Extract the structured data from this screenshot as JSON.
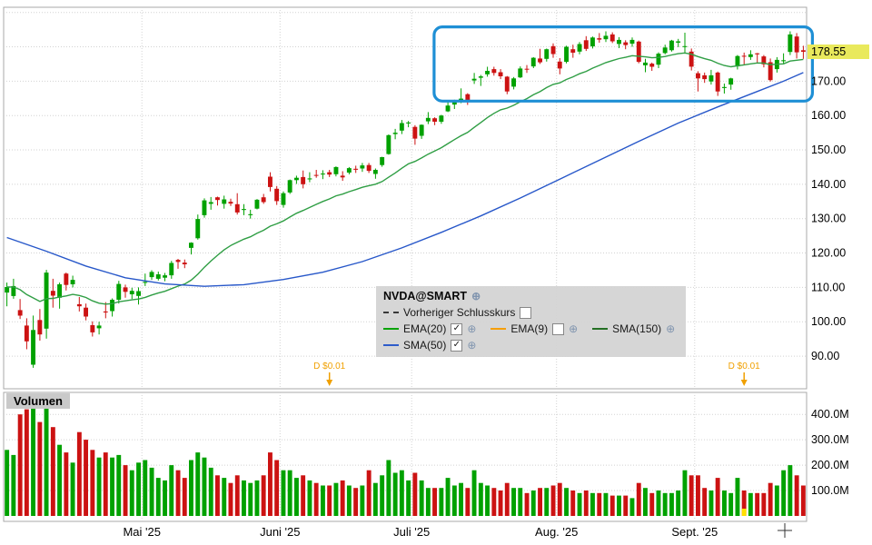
{
  "icons": {
    "globe": "⊕",
    "check": "✓"
  },
  "volume_panel": {
    "label": "Volumen"
  },
  "legend": {
    "title": "NVDA@SMART",
    "rows": [
      {
        "items": [
          {
            "id": "prev-close",
            "swatch": "dashed",
            "color": "#333333",
            "label": "Vorheriger Schlusskurs",
            "checkbox": "empty",
            "globe": false
          }
        ]
      },
      {
        "items": [
          {
            "id": "ema20",
            "swatch": "solid",
            "color": "#00a100",
            "label": "EMA(20)",
            "checkbox": "checked",
            "globe": true
          },
          {
            "id": "ema9",
            "swatch": "solid",
            "color": "#f59b00",
            "label": "EMA(9)",
            "checkbox": "empty",
            "globe": true
          },
          {
            "id": "sma150",
            "swatch": "solid",
            "color": "#1d6b1d",
            "label": "SMA(150)",
            "checkbox": "none",
            "globe": true
          }
        ]
      },
      {
        "items": [
          {
            "id": "sma50",
            "swatch": "solid",
            "color": "#2757c9",
            "label": "SMA(50)",
            "checkbox": "checked",
            "globe": true
          }
        ]
      }
    ]
  },
  "chart_data": {
    "type": "candlestick",
    "symbol": "NVDA@SMART",
    "columns": [
      "open",
      "high",
      "low",
      "close",
      "volume_millions"
    ],
    "colors": {
      "up": "#00a100",
      "down": "#cc1212",
      "dividend": "#f0a000",
      "last_price_bg": "#e9e95c"
    },
    "last_price": {
      "value": 178.55,
      "label": "178.55"
    },
    "price_axis": {
      "min": 80.5,
      "max": 191.5,
      "grid_ticks": [
        90,
        100,
        110,
        120,
        130,
        140,
        150,
        160,
        170,
        180,
        190
      ],
      "labeled_ticks": [
        {
          "v": 170,
          "label": "170.00"
        },
        {
          "v": 160,
          "label": "160.00"
        },
        {
          "v": 150,
          "label": "150.00"
        },
        {
          "v": 140,
          "label": "140.00"
        },
        {
          "v": 130,
          "label": "130.00"
        },
        {
          "v": 120,
          "label": "120.00"
        },
        {
          "v": 110,
          "label": "110.00"
        },
        {
          "v": 100,
          "label": "100.00"
        },
        {
          "v": 90,
          "label": "90.00"
        }
      ]
    },
    "volume_axis": {
      "max": 465,
      "ticks": [
        {
          "v": 400,
          "label": "400.0M"
        },
        {
          "v": 300,
          "label": "300.0M"
        },
        {
          "v": 200,
          "label": "200.0M"
        },
        {
          "v": 100,
          "label": "100.0M"
        }
      ]
    },
    "time_axis": {
      "months": [
        {
          "label": "Mai '25",
          "index": 21
        },
        {
          "label": "Juni '25",
          "index": 42
        },
        {
          "label": "Juli '25",
          "index": 62
        },
        {
          "label": "Aug. '25",
          "index": 84
        },
        {
          "label": "Sept. '25",
          "index": 105
        }
      ]
    },
    "overlays": [
      {
        "id": "ema20-line",
        "name": "EMA(20)",
        "color": "#2f9e44",
        "derive": "ema",
        "period": 20
      },
      {
        "id": "sma50-line",
        "name": "SMA(50)",
        "color": "#2757c9",
        "points": [
          [
            0,
            124.5
          ],
          [
            6,
            120.5
          ],
          [
            12,
            116.2
          ],
          [
            18,
            112.8
          ],
          [
            24,
            111.0
          ],
          [
            30,
            110.3
          ],
          [
            36,
            110.8
          ],
          [
            42,
            112.3
          ],
          [
            48,
            114.4
          ],
          [
            54,
            117.5
          ],
          [
            60,
            121.5
          ],
          [
            66,
            126.0
          ],
          [
            72,
            130.8
          ],
          [
            78,
            136.0
          ],
          [
            84,
            141.5
          ],
          [
            90,
            147.0
          ],
          [
            96,
            152.5
          ],
          [
            102,
            157.8
          ],
          [
            108,
            162.5
          ],
          [
            114,
            167.0
          ],
          [
            118,
            170.0
          ],
          [
            121,
            172.5
          ]
        ]
      }
    ],
    "annotations": {
      "box": {
        "start_index": 66,
        "end_index": 121,
        "price_top": 185.8,
        "price_bottom": 164.2,
        "color": "#1e8fd5"
      },
      "dividends": [
        {
          "label": "D $0.01",
          "index": 49
        },
        {
          "label": "D $0.01",
          "index": 112
        }
      ]
    },
    "volume_highlight": {
      "index": 112,
      "color": "#ffe000"
    },
    "candles": [
      [
        108.5,
        111.4,
        104.5,
        110.1,
        260
      ],
      [
        107.5,
        112.5,
        106.7,
        110.4,
        240
      ],
      [
        103.4,
        106.6,
        100.8,
        101.8,
        400
      ],
      [
        98.9,
        101.0,
        92.0,
        94.3,
        420
      ],
      [
        87.5,
        101.8,
        86.6,
        97.6,
        450
      ],
      [
        100.5,
        103.7,
        94.5,
        96.3,
        370
      ],
      [
        98.0,
        115.1,
        95.1,
        114.3,
        430
      ],
      [
        109.0,
        112.5,
        104.1,
        107.6,
        350
      ],
      [
        107.0,
        111.4,
        103.8,
        110.9,
        280
      ],
      [
        114.0,
        114.3,
        109.1,
        110.7,
        250
      ],
      [
        110.9,
        113.4,
        110.0,
        112.2,
        210
      ],
      [
        105.1,
        107.2,
        103.0,
        104.5,
        330
      ],
      [
        104.1,
        105.3,
        100.4,
        101.5,
        300
      ],
      [
        99.0,
        100.1,
        95.7,
        96.9,
        260
      ],
      [
        98.1,
        100.0,
        96.3,
        98.9,
        230
      ],
      [
        103.0,
        105.7,
        101.0,
        102.7,
        250
      ],
      [
        103.1,
        106.8,
        101.5,
        106.4,
        230
      ],
      [
        106.4,
        111.9,
        105.3,
        111.0,
        240
      ],
      [
        110.0,
        110.8,
        107.0,
        108.7,
        200
      ],
      [
        108.0,
        109.9,
        106.6,
        109.0,
        180
      ],
      [
        107.5,
        110.0,
        105.0,
        108.9,
        210
      ],
      [
        111.3,
        114.0,
        110.4,
        111.6,
        220
      ],
      [
        113.0,
        115.0,
        112.2,
        114.5,
        190
      ],
      [
        112.5,
        114.6,
        112.0,
        113.8,
        150
      ],
      [
        112.8,
        114.2,
        111.8,
        113.5,
        140
      ],
      [
        113.5,
        117.7,
        112.5,
        117.1,
        200
      ],
      [
        118.0,
        118.3,
        115.4,
        117.4,
        180
      ],
      [
        117.2,
        118.1,
        115.6,
        116.7,
        150
      ],
      [
        121.5,
        123.1,
        119.6,
        123.0,
        220
      ],
      [
        124.3,
        131.2,
        123.9,
        129.9,
        250
      ],
      [
        131.0,
        135.9,
        130.3,
        135.3,
        230
      ],
      [
        134.3,
        136.3,
        132.6,
        134.8,
        190
      ],
      [
        136.2,
        136.4,
        133.8,
        135.4,
        160
      ],
      [
        134.3,
        136.7,
        132.9,
        135.6,
        150
      ],
      [
        134.9,
        135.8,
        133.7,
        134.4,
        130
      ],
      [
        134.2,
        137.4,
        131.2,
        131.8,
        160
      ],
      [
        132.5,
        134.2,
        131.0,
        132.8,
        140
      ],
      [
        131.0,
        132.6,
        130.0,
        131.3,
        130
      ],
      [
        132.9,
        135.7,
        132.7,
        135.5,
        140
      ],
      [
        136.2,
        137.2,
        134.3,
        134.8,
        160
      ],
      [
        142.2,
        143.5,
        137.9,
        139.2,
        250
      ],
      [
        138.7,
        139.5,
        134.0,
        135.1,
        220
      ],
      [
        134.0,
        137.9,
        133.2,
        137.4,
        180
      ],
      [
        137.6,
        141.4,
        137.2,
        141.2,
        180
      ],
      [
        141.2,
        142.5,
        140.1,
        141.9,
        150
      ],
      [
        142.1,
        144.0,
        138.8,
        140.0,
        160
      ],
      [
        141.4,
        143.5,
        140.6,
        141.7,
        140
      ],
      [
        142.7,
        144.2,
        141.9,
        142.6,
        130
      ],
      [
        143.0,
        144.1,
        141.5,
        143.1,
        120
      ],
      [
        143.5,
        144.2,
        142.1,
        142.8,
        120
      ],
      [
        142.9,
        145.2,
        142.3,
        145.0,
        130
      ],
      [
        142.5,
        143.8,
        141.0,
        142.0,
        140
      ],
      [
        143.4,
        145.0,
        142.9,
        144.7,
        120
      ],
      [
        144.5,
        145.4,
        143.3,
        144.2,
        110
      ],
      [
        144.6,
        146.2,
        143.6,
        145.5,
        120
      ],
      [
        145.6,
        146.2,
        143.3,
        143.9,
        180
      ],
      [
        143.0,
        144.6,
        141.6,
        144.2,
        130
      ],
      [
        145.6,
        148.0,
        145.1,
        147.9,
        160
      ],
      [
        148.8,
        154.5,
        148.6,
        154.3,
        220
      ],
      [
        154.6,
        156.1,
        153.1,
        155.0,
        170
      ],
      [
        155.6,
        158.7,
        154.6,
        157.8,
        180
      ],
      [
        157.7,
        158.4,
        156.6,
        158.0,
        140
      ],
      [
        156.7,
        157.2,
        151.5,
        153.3,
        170
      ],
      [
        154.1,
        157.4,
        153.2,
        157.3,
        140
      ],
      [
        158.3,
        161.0,
        157.5,
        159.3,
        110
      ],
      [
        159.2,
        159.5,
        157.2,
        158.2,
        110
      ],
      [
        158.2,
        160.2,
        157.6,
        160.0,
        110
      ],
      [
        161.2,
        164.4,
        161.0,
        162.9,
        150
      ],
      [
        163.2,
        164.6,
        161.9,
        164.1,
        120
      ],
      [
        163.9,
        167.9,
        163.6,
        164.9,
        130
      ],
      [
        166.2,
        166.5,
        163.1,
        164.1,
        110
      ],
      [
        170.2,
        172.4,
        169.2,
        170.7,
        180
      ],
      [
        171.0,
        171.8,
        168.6,
        171.4,
        130
      ],
      [
        172.0,
        174.2,
        171.3,
        173.0,
        120
      ],
      [
        173.5,
        174.2,
        171.6,
        172.4,
        110
      ],
      [
        172.6,
        173.5,
        170.6,
        171.4,
        100
      ],
      [
        171.3,
        171.5,
        166.2,
        167.0,
        130
      ],
      [
        168.4,
        171.2,
        167.6,
        170.8,
        110
      ],
      [
        171.1,
        174.3,
        170.9,
        173.7,
        110
      ],
      [
        173.6,
        174.7,
        172.4,
        173.5,
        90
      ],
      [
        174.3,
        177.0,
        173.8,
        176.8,
        100
      ],
      [
        176.6,
        179.4,
        175.0,
        175.5,
        110
      ],
      [
        176.5,
        179.5,
        175.7,
        179.3,
        110
      ],
      [
        180.2,
        181.0,
        176.8,
        177.9,
        120
      ],
      [
        175.7,
        176.7,
        172.0,
        173.7,
        130
      ],
      [
        175.6,
        180.3,
        175.2,
        180.0,
        110
      ],
      [
        179.3,
        180.6,
        176.8,
        178.3,
        100
      ],
      [
        178.6,
        181.4,
        177.8,
        180.8,
        90
      ],
      [
        181.9,
        183.1,
        178.8,
        179.4,
        100
      ],
      [
        180.1,
        183.0,
        179.5,
        182.7,
        90
      ],
      [
        182.5,
        184.0,
        181.2,
        182.1,
        90
      ],
      [
        182.2,
        184.5,
        181.4,
        183.2,
        90
      ],
      [
        183.6,
        184.2,
        181.1,
        181.6,
        80
      ],
      [
        180.8,
        182.8,
        179.6,
        182.0,
        80
      ],
      [
        181.3,
        181.9,
        179.3,
        180.5,
        80
      ],
      [
        180.9,
        182.7,
        180.0,
        182.0,
        70
      ],
      [
        181.5,
        181.8,
        175.2,
        175.6,
        130
      ],
      [
        174.6,
        176.5,
        172.6,
        175.4,
        110
      ],
      [
        175.1,
        175.4,
        173.0,
        174.2,
        90
      ],
      [
        174.8,
        178.4,
        173.8,
        178.0,
        100
      ],
      [
        178.2,
        180.6,
        177.8,
        179.8,
        90
      ],
      [
        179.0,
        182.0,
        178.6,
        181.8,
        90
      ],
      [
        181.2,
        182.3,
        179.9,
        181.6,
        100
      ],
      [
        180.0,
        184.1,
        178.0,
        180.2,
        180
      ],
      [
        178.6,
        179.5,
        173.1,
        174.2,
        160
      ],
      [
        172.3,
        172.9,
        167.0,
        170.8,
        160
      ],
      [
        171.7,
        172.5,
        169.5,
        170.6,
        110
      ],
      [
        169.9,
        173.3,
        169.0,
        171.7,
        100
      ],
      [
        172.5,
        172.8,
        165.7,
        167.0,
        150
      ],
      [
        168.0,
        169.3,
        166.4,
        168.3,
        100
      ],
      [
        169.0,
        171.0,
        167.5,
        170.8,
        90
      ],
      [
        174.3,
        177.6,
        173.4,
        177.3,
        150
      ],
      [
        177.4,
        178.3,
        174.7,
        177.2,
        100
      ],
      [
        177.0,
        179.0,
        176.2,
        177.8,
        90
      ],
      [
        178.1,
        178.2,
        175.4,
        177.8,
        90
      ],
      [
        177.2,
        177.6,
        174.0,
        174.9,
        90
      ],
      [
        175.5,
        176.6,
        169.9,
        170.3,
        130
      ],
      [
        173.5,
        177.0,
        172.5,
        176.2,
        120
      ],
      [
        175.8,
        178.1,
        175.2,
        176.1,
        180
      ],
      [
        178.5,
        184.5,
        177.6,
        183.6,
        200
      ],
      [
        183.0,
        184.0,
        176.6,
        178.4,
        160
      ],
      [
        179.0,
        180.3,
        176.5,
        178.55,
        120
      ]
    ]
  }
}
